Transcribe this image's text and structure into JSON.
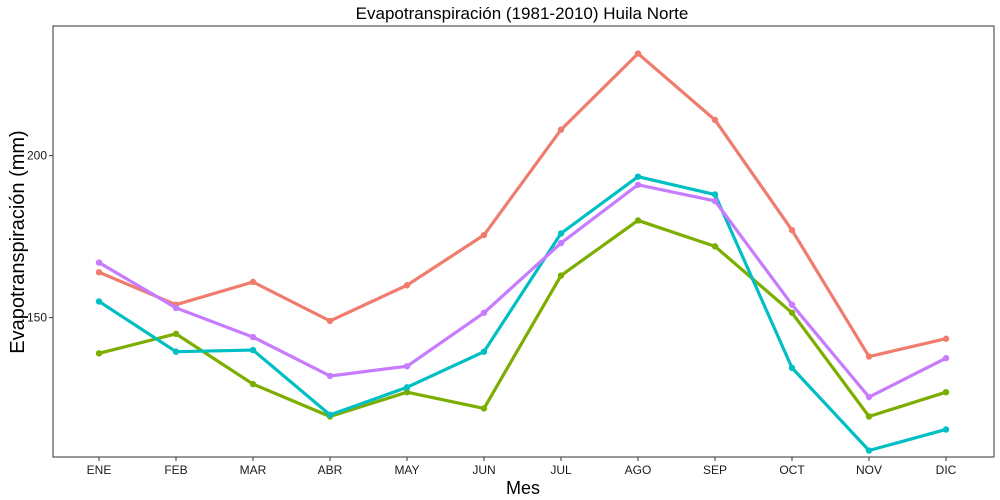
{
  "chart_data": {
    "type": "line",
    "title": "Evapotranspiración (1981-2010)  Huila Norte",
    "xlabel": "Mes",
    "ylabel": "Evapotranspiración (mm)",
    "categories": [
      "ENE",
      "FEB",
      "MAR",
      "ABR",
      "MAY",
      "JUN",
      "JUL",
      "AGO",
      "SEP",
      "OCT",
      "NOV",
      "DIC"
    ],
    "ylim": [
      107,
      240
    ],
    "yticks": [
      150,
      200
    ],
    "grid": false,
    "legend": "none",
    "series": [
      {
        "color": "#F07C6E",
        "values": [
          164,
          154,
          161,
          149,
          160,
          175.5,
          208,
          231.5,
          211,
          177,
          138,
          143.5
        ]
      },
      {
        "color": "#7CAE00",
        "values": [
          139,
          145,
          129.5,
          119.5,
          127,
          122,
          163,
          180,
          172,
          151.5,
          119.5,
          127
        ]
      },
      {
        "color": "#00BFC4",
        "values": [
          155,
          139.5,
          140,
          120,
          128.5,
          139.5,
          176,
          193.5,
          188,
          134.5,
          109,
          115.5
        ]
      },
      {
        "color": "#C77CFF",
        "values": [
          167,
          153,
          144,
          132,
          135,
          151.5,
          173,
          191,
          186,
          154,
          125.5,
          137.5
        ]
      }
    ]
  }
}
